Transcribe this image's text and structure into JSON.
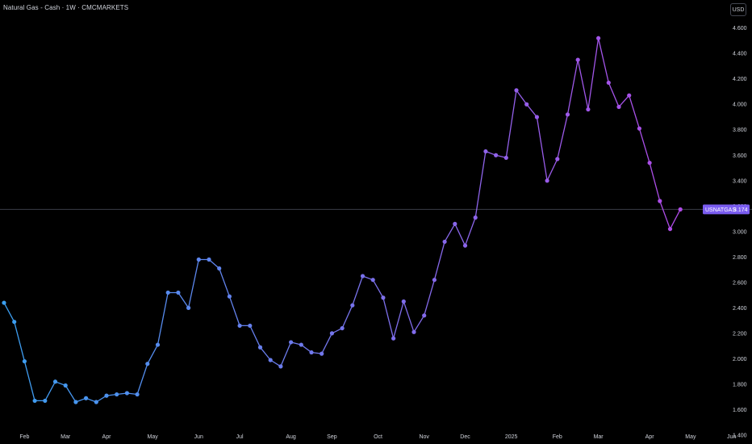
{
  "header": {
    "title": "Natural Gas - Cash · 1W · CMCMARKETS",
    "currency": "USD"
  },
  "price_tag": {
    "symbol": "USNATGAS",
    "value": "3.174",
    "color": "#7a5cf0"
  },
  "colors": {
    "background": "#000000",
    "line_start": "#3a9ff0",
    "line_end": "#b04be8",
    "axis_text": "#d1d4dc",
    "price_line": "#3a3d47"
  },
  "chart_data": {
    "type": "line",
    "title": "Natural Gas - Cash · 1W · CMCMARKETS",
    "xlabel": "",
    "ylabel": "",
    "ylim": [
      1.33,
      4.82
    ],
    "grid": false,
    "x_tick_labels": [
      "Feb",
      "Mar",
      "Apr",
      "May",
      "Jun",
      "Jul",
      "Aug",
      "Sep",
      "Oct",
      "Nov",
      "Dec",
      "2025",
      "Feb",
      "Mar",
      "Apr",
      "May",
      "Jun"
    ],
    "x_tick_index": [
      2,
      6,
      10,
      14.5,
      19,
      23,
      28,
      32,
      36.5,
      41,
      45,
      49.5,
      54,
      58,
      63,
      67,
      71
    ],
    "y_tick_values": [
      1.4,
      1.6,
      1.8,
      2.0,
      2.2,
      2.4,
      2.6,
      2.8,
      3.0,
      3.2,
      3.4,
      3.6,
      3.8,
      4.0,
      4.2,
      4.4,
      4.6
    ],
    "y_tick_labels": [
      "1.400",
      "1.600",
      "1.800",
      "2.000",
      "2.200",
      "2.400",
      "2.600",
      "2.800",
      "3.000",
      "3.200",
      "3.400",
      "3.600",
      "3.800",
      "4.000",
      "4.200",
      "4.400",
      "4.600"
    ],
    "last_value": 3.174,
    "values": [
      2.44,
      2.29,
      1.98,
      1.67,
      1.67,
      1.82,
      1.79,
      1.66,
      1.69,
      1.66,
      1.71,
      1.72,
      1.73,
      1.72,
      1.96,
      2.11,
      2.52,
      2.52,
      2.4,
      2.78,
      2.78,
      2.71,
      2.49,
      2.26,
      2.26,
      2.09,
      1.99,
      1.94,
      2.13,
      2.11,
      2.05,
      2.04,
      2.2,
      2.24,
      2.42,
      2.65,
      2.62,
      2.48,
      2.16,
      2.45,
      2.21,
      2.34,
      2.62,
      2.92,
      3.06,
      2.89,
      3.11,
      3.63,
      3.6,
      3.58,
      4.11,
      4.0,
      3.9,
      3.4,
      3.57,
      3.92,
      4.35,
      3.96,
      4.52,
      4.17,
      3.98,
      4.07,
      3.81,
      3.54,
      3.24,
      3.02,
      3.174
    ]
  }
}
